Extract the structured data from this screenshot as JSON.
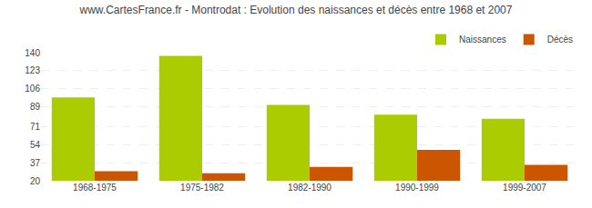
{
  "chart_data": {
    "type": "bar",
    "title": "www.CartesFrance.fr - Montrodat : Evolution des naissances et décès entre 1968 et 2007",
    "categories": [
      "1968-1975",
      "1975-1982",
      "1982-1990",
      "1990-1999",
      "1999-2007"
    ],
    "series": [
      {
        "name": "Naissances",
        "color": "#aacc00",
        "values": [
          98,
          137,
          91,
          82,
          78
        ]
      },
      {
        "name": "Décès",
        "color": "#cc5500",
        "values": [
          29,
          27,
          33,
          49,
          35
        ]
      }
    ],
    "ylim": [
      20,
      140
    ],
    "yticks": [
      20,
      37,
      54,
      71,
      89,
      106,
      123,
      140
    ],
    "grid": true,
    "legend": "upper right"
  }
}
